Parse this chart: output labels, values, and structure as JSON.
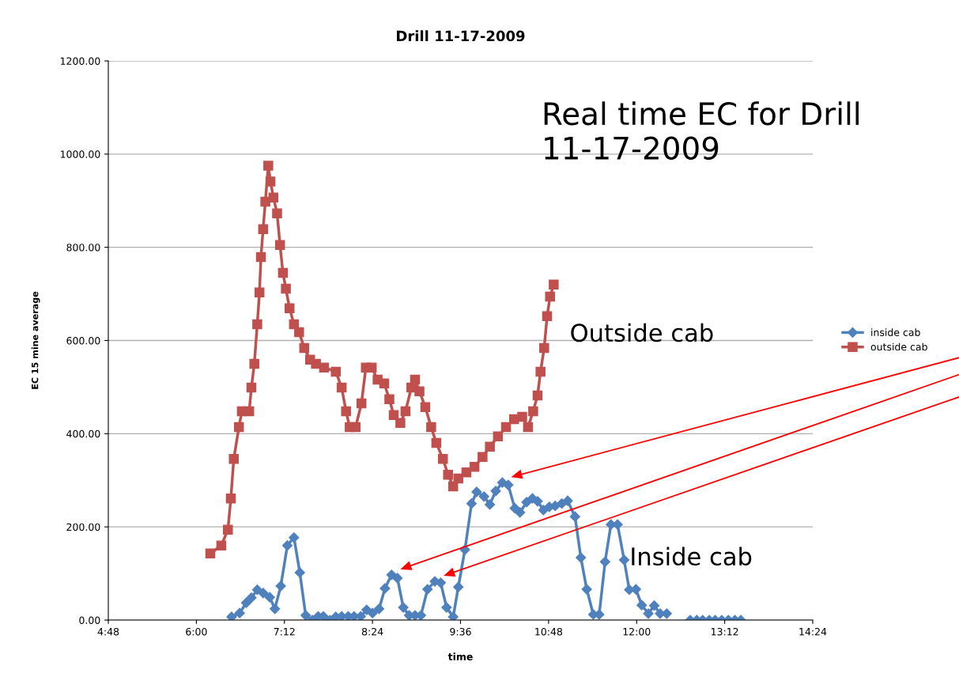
{
  "chart_data": {
    "type": "line",
    "title": "Drill 11-17-2009",
    "xlabel": "time",
    "ylabel": "EC 15 mine average",
    "xlim": [
      4.8,
      14.4
    ],
    "xticks": [
      {
        "value": 4.8,
        "label": "4:48"
      },
      {
        "value": 6.0,
        "label": "6:00"
      },
      {
        "value": 7.2,
        "label": "7:12"
      },
      {
        "value": 8.4,
        "label": "8:24"
      },
      {
        "value": 9.6,
        "label": "9:36"
      },
      {
        "value": 10.8,
        "label": "10:48"
      },
      {
        "value": 12.0,
        "label": "12:00"
      },
      {
        "value": 13.2,
        "label": "13:12"
      },
      {
        "value": 14.4,
        "label": "14:24"
      }
    ],
    "ylim": [
      0,
      1200
    ],
    "yticks": [
      {
        "value": 0,
        "label": "0.00"
      },
      {
        "value": 200,
        "label": "200.00"
      },
      {
        "value": 400,
        "label": "400.00"
      },
      {
        "value": 600,
        "label": "600.00"
      },
      {
        "value": 800,
        "label": "800.00"
      },
      {
        "value": 1000,
        "label": "1000.00"
      },
      {
        "value": 1200,
        "label": "1200.00"
      }
    ],
    "grid": "y",
    "legend": "right",
    "annotations": [
      "Real time EC for Drill 11-17-2009",
      "Outside cab",
      "Inside cab"
    ],
    "series": [
      {
        "name": "inside cab",
        "color": "#4f81bd",
        "marker": "diamond",
        "x": [
          6.48,
          6.59,
          6.68,
          6.75,
          6.83,
          6.91,
          7.0,
          7.07,
          7.15,
          7.24,
          7.33,
          7.41,
          7.49,
          7.58,
          7.66,
          7.73,
          7.82,
          7.9,
          7.98,
          8.07,
          8.15,
          8.24,
          8.32,
          8.4,
          8.49,
          8.57,
          8.66,
          8.74,
          8.82,
          8.9,
          8.98,
          9.06,
          9.15,
          9.25,
          9.33,
          9.41,
          9.5,
          9.57,
          9.66,
          9.75,
          9.82,
          9.92,
          10.0,
          10.08,
          10.17,
          10.25,
          10.34,
          10.41,
          10.5,
          10.58,
          10.65,
          10.73,
          10.81,
          10.89,
          10.98,
          11.06,
          11.16,
          11.24,
          11.32,
          11.41,
          11.49,
          11.57,
          11.65,
          11.74,
          11.83,
          11.9,
          11.99,
          12.07,
          12.16,
          12.24,
          12.32,
          12.41,
          12.57,
          12.73,
          12.82,
          12.9,
          12.99,
          13.07,
          13.16,
          13.25,
          13.34,
          13.42
        ],
        "values": [
          7,
          15,
          37,
          48,
          65,
          58,
          49,
          24,
          73,
          160,
          177,
          102,
          10,
          0,
          8,
          8,
          0,
          7,
          8,
          8,
          8,
          8,
          22,
          15,
          24,
          68,
          97,
          90,
          27,
          10,
          10,
          10,
          66,
          83,
          80,
          27,
          7,
          71,
          151,
          250,
          275,
          265,
          248,
          277,
          295,
          290,
          240,
          231,
          253,
          261,
          255,
          236,
          243,
          245,
          250,
          256,
          222,
          134,
          66,
          12,
          12,
          125,
          205,
          205,
          129,
          65,
          66,
          32,
          14,
          31,
          14,
          14,
          null,
          0,
          0,
          0,
          0,
          0,
          0,
          0,
          0,
          0
        ]
      },
      {
        "name": "outside cab",
        "color": "#c0504d",
        "marker": "square",
        "x": [
          6.19,
          6.34,
          6.43,
          6.47,
          6.51,
          6.58,
          6.62,
          6.72,
          6.75,
          6.79,
          6.83,
          6.86,
          6.88,
          6.91,
          6.94,
          6.98,
          7.01,
          7.05,
          7.1,
          7.14,
          7.18,
          7.22,
          7.27,
          7.33,
          7.4,
          7.47,
          7.55,
          7.63,
          7.74,
          7.9,
          7.98,
          8.04,
          8.09,
          8.17,
          8.25,
          8.31,
          8.39,
          8.47,
          8.56,
          8.63,
          8.69,
          8.78,
          8.85,
          8.93,
          8.98,
          9.04,
          9.12,
          9.2,
          9.27,
          9.36,
          9.43,
          9.5,
          9.57,
          9.68,
          9.79,
          9.9,
          10.0,
          10.11,
          10.22,
          10.33,
          10.44,
          10.52,
          10.59,
          10.65,
          10.69,
          10.74,
          10.78,
          10.82,
          10.87
        ],
        "values": [
          143,
          160,
          194,
          261,
          346,
          414,
          448,
          448,
          499,
          550,
          635,
          703,
          779,
          839,
          898,
          975,
          941,
          907,
          873,
          805,
          745,
          711,
          669,
          635,
          618,
          584,
          559,
          550,
          542,
          533,
          499,
          448,
          414,
          414,
          465,
          542,
          542,
          516,
          508,
          474,
          440,
          423,
          448,
          499,
          516,
          491,
          457,
          414,
          380,
          346,
          312,
          287,
          304,
          317,
          329,
          350,
          372,
          394,
          414,
          431,
          436,
          414,
          448,
          482,
          533,
          584,
          652,
          694,
          720
        ]
      }
    ]
  }
}
